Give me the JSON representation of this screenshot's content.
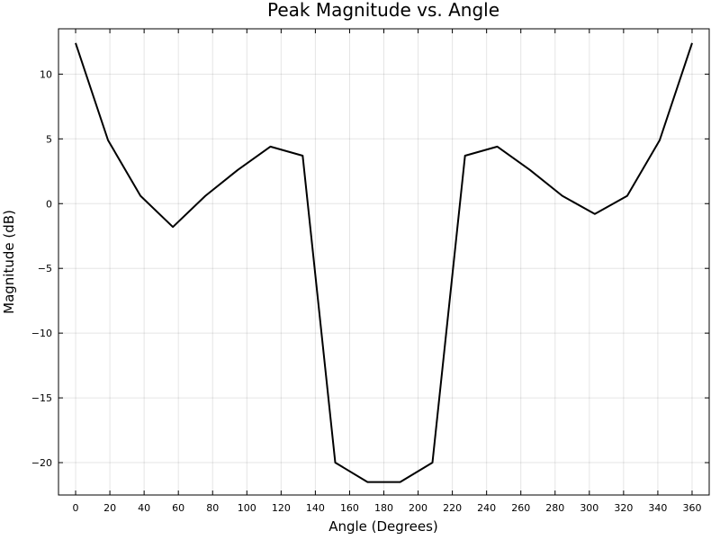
{
  "chart_data": {
    "type": "line",
    "title": "Peak Magnitude vs. Angle",
    "xlabel": "Angle (Degrees)",
    "ylabel": "Magnitude (dB)",
    "xlim": [
      -10,
      370
    ],
    "ylim": [
      -22.5,
      13.5
    ],
    "grid": true,
    "legend": "none",
    "line_color": "#000000",
    "xticks": [
      0,
      20,
      40,
      60,
      80,
      100,
      120,
      140,
      160,
      180,
      200,
      220,
      240,
      260,
      280,
      300,
      320,
      340,
      360
    ],
    "xtick_labels": [
      "0",
      "20",
      "40",
      "60",
      "80",
      "100",
      "120",
      "140",
      "160",
      "180",
      "200",
      "220",
      "240",
      "260",
      "280",
      "300",
      "320",
      "340",
      "360"
    ],
    "yticks": [
      10,
      5,
      0,
      -5,
      -10,
      -15,
      -20
    ],
    "ytick_labels": [
      "10",
      "5",
      "0",
      "−5",
      "−10",
      "−15",
      "−20"
    ],
    "series": [
      {
        "x": [
          0,
          18.9,
          37.9,
          56.8,
          75.8,
          94.7,
          113.7,
          132.6,
          151.6,
          170.5,
          189.5,
          208.4,
          227.4,
          246.3,
          265.3,
          284.2,
          303.2,
          322.1,
          341.1,
          360
        ],
        "y": [
          12.4,
          4.9,
          0.6,
          -1.8,
          0.6,
          2.6,
          4.4,
          3.7,
          -20.0,
          -21.5,
          -21.5,
          -20.0,
          3.7,
          4.4,
          2.6,
          0.6,
          -0.8,
          0.6,
          4.9,
          12.4
        ]
      }
    ]
  }
}
